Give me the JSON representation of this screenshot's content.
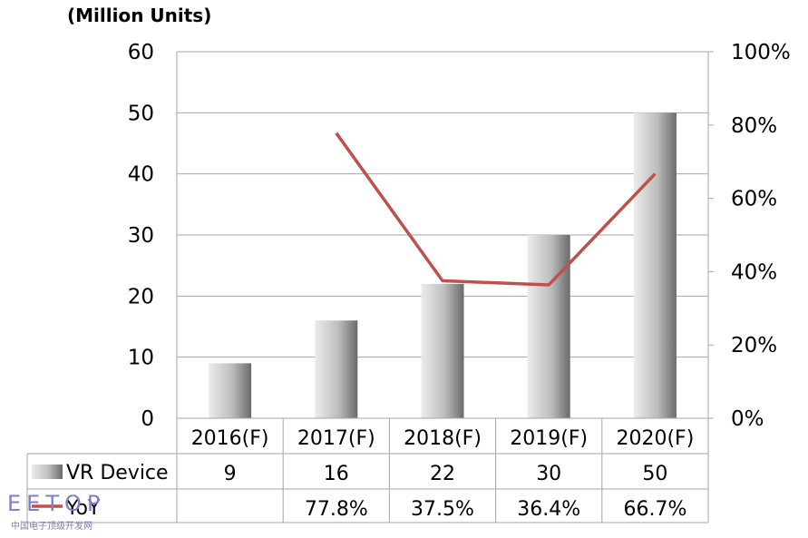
{
  "chart_data": {
    "type": "bar+line",
    "unit_label": "(Million Units)",
    "categories": [
      "2016(F)",
      "2017(F)",
      "2018(F)",
      "2019(F)",
      "2020(F)"
    ],
    "series": [
      {
        "name": "VR Device",
        "type": "bar",
        "axis": "left",
        "values": [
          9,
          16,
          22,
          30,
          50
        ]
      },
      {
        "name": "YoY",
        "type": "line",
        "axis": "right",
        "values": [
          null,
          77.8,
          37.5,
          36.4,
          66.7
        ]
      }
    ],
    "table_rows": [
      {
        "label": "VR Device",
        "cells": [
          "9",
          "16",
          "22",
          "30",
          "50"
        ]
      },
      {
        "label": "YoY",
        "cells": [
          "",
          "77.8%",
          "37.5%",
          "36.4%",
          "66.7%"
        ]
      }
    ],
    "y_left": {
      "min": 0,
      "max": 60,
      "ticks": [
        0,
        10,
        20,
        30,
        40,
        50,
        60
      ]
    },
    "y_right": {
      "min": 0,
      "max": 100,
      "ticks": [
        "0%",
        "20%",
        "40%",
        "60%",
        "80%",
        "100%"
      ]
    },
    "grid": true,
    "colors": {
      "bar_light": "#e8e8e8",
      "bar_dark": "#6f6f6f",
      "line": "#c0504d",
      "grid": "#a6a6a6"
    }
  },
  "watermark": {
    "logo_text": "EETOP",
    "subtext": "中国电子顶级开发网"
  }
}
